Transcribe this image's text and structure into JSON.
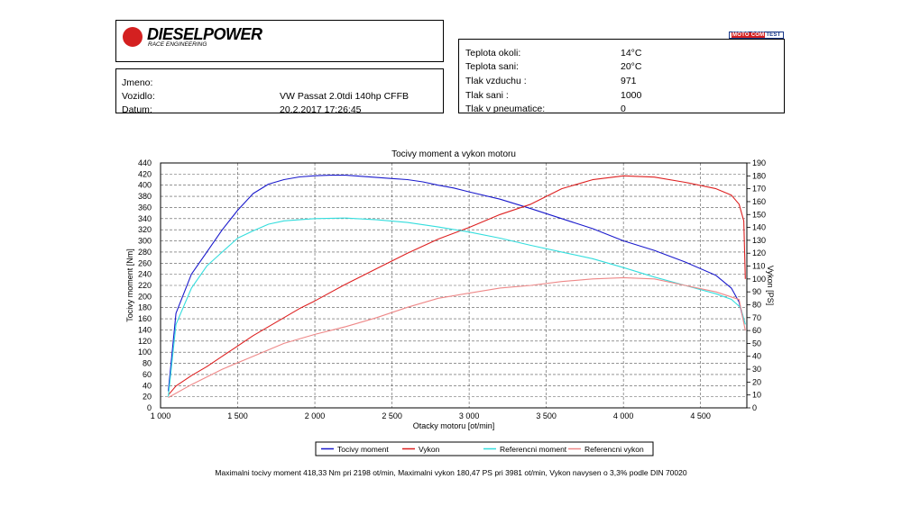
{
  "header": {
    "brand": "DIESELPOWER",
    "brand_sub": "RACE ENGINEERING",
    "motocom_prefix": "MOTO",
    "motocom_mid": "COM",
    "motocom_suffix": "TEST"
  },
  "vehicle": {
    "name_label": "Jmeno:",
    "name_value": "",
    "vehicle_label": "Vozidlo:",
    "vehicle_value": "VW Passat 2.0tdi 140hp CFFB",
    "date_label": "Datum:",
    "date_value": "20.2.2017 17:26:45"
  },
  "conditions": [
    {
      "label": "Teplota okoli:",
      "value": "14°C"
    },
    {
      "label": "Teplota sani:",
      "value": "20°C"
    },
    {
      "label": "Tlak vzduchu :",
      "value": "971"
    },
    {
      "label": "Tlak sani :",
      "value": "1000"
    },
    {
      "label": "Tlak v pneumatice:",
      "value": "0"
    }
  ],
  "footer_text": "Maximalni tocivy moment 418,33 Nm pri 2198 ot/min,  Maximalni vykon 180,47 PS pri 3981 ot/min,  Vykon navysen o 3,3% podle DIN 70020",
  "chart_data": {
    "type": "line",
    "title": "Tocivy moment a vykon motoru",
    "xlabel": "Otacky motoru [ot/min]",
    "ylabel": "Tocivy moment [Nm]",
    "y2label": "Vykon [PS]",
    "xlim": [
      1000,
      4800
    ],
    "ylim": [
      0,
      440
    ],
    "y2lim": [
      0,
      190
    ],
    "x_ticks": [
      1000,
      1500,
      2000,
      2500,
      3000,
      3500,
      4000,
      4500
    ],
    "x_tick_labels": [
      "1 000",
      "1 500",
      "2 000",
      "2 500",
      "3 000",
      "3 500",
      "4 000",
      "4 500"
    ],
    "y_ticks": [
      0,
      20,
      40,
      60,
      80,
      100,
      120,
      140,
      160,
      180,
      200,
      220,
      240,
      260,
      280,
      300,
      320,
      340,
      360,
      380,
      400,
      420,
      440
    ],
    "y2_ticks": [
      0,
      10,
      20,
      30,
      40,
      50,
      60,
      70,
      80,
      90,
      100,
      110,
      120,
      130,
      140,
      150,
      160,
      170,
      180,
      190
    ],
    "grid": true,
    "legend_position": "bottom",
    "colors": {
      "torque": "#1a1acc",
      "power": "#dd2020",
      "ref_torque": "#33dddd",
      "ref_power": "#ee8888"
    },
    "series": [
      {
        "name": "Tocivy moment",
        "axis": "left",
        "color": "#1a1acc",
        "x": [
          1050,
          1100,
          1200,
          1300,
          1400,
          1500,
          1600,
          1700,
          1800,
          1900,
          2000,
          2100,
          2200,
          2300,
          2400,
          2500,
          2600,
          2700,
          2800,
          2900,
          3000,
          3200,
          3400,
          3600,
          3800,
          4000,
          4200,
          4400,
          4600,
          4700,
          4750,
          4780
        ],
        "y": [
          30,
          170,
          240,
          280,
          320,
          355,
          385,
          402,
          410,
          415,
          417,
          418,
          418,
          416,
          414,
          412,
          410,
          406,
          400,
          395,
          388,
          375,
          358,
          340,
          322,
          300,
          283,
          262,
          238,
          215,
          190,
          155
        ]
      },
      {
        "name": "Vykon",
        "axis": "right",
        "color": "#dd2020",
        "x": [
          1050,
          1100,
          1200,
          1300,
          1400,
          1500,
          1600,
          1700,
          1800,
          1900,
          2000,
          2200,
          2400,
          2600,
          2800,
          3000,
          3200,
          3400,
          3600,
          3800,
          4000,
          4200,
          4400,
          4600,
          4700,
          4750,
          4780,
          4790
        ],
        "y": [
          10,
          17,
          25,
          32,
          40,
          48,
          56,
          63,
          70,
          77,
          83,
          96,
          108,
          120,
          131,
          140,
          150,
          158,
          170,
          177,
          180,
          179,
          175,
          170,
          165,
          158,
          145,
          100
        ]
      },
      {
        "name": "Referencni moment",
        "axis": "left",
        "color": "#33dddd",
        "x": [
          1050,
          1100,
          1200,
          1300,
          1400,
          1500,
          1600,
          1700,
          1800,
          1900,
          2000,
          2200,
          2400,
          2600,
          2800,
          3000,
          3200,
          3400,
          3600,
          3800,
          4000,
          4200,
          4400,
          4600,
          4700,
          4760,
          4790
        ],
        "y": [
          20,
          150,
          215,
          255,
          280,
          305,
          318,
          330,
          336,
          338,
          340,
          341,
          338,
          333,
          325,
          316,
          305,
          292,
          280,
          268,
          252,
          235,
          220,
          205,
          195,
          180,
          150
        ]
      },
      {
        "name": "Referencni vykon",
        "axis": "right",
        "color": "#ee8888",
        "x": [
          1050,
          1200,
          1400,
          1600,
          1800,
          2000,
          2200,
          2400,
          2600,
          2800,
          3000,
          3200,
          3400,
          3600,
          3800,
          4000,
          4200,
          4400,
          4600,
          4750,
          4790
        ],
        "y": [
          8,
          18,
          30,
          40,
          50,
          57,
          63,
          70,
          78,
          85,
          89,
          93,
          95,
          98,
          100,
          101,
          100,
          95,
          90,
          84,
          60
        ]
      }
    ]
  }
}
